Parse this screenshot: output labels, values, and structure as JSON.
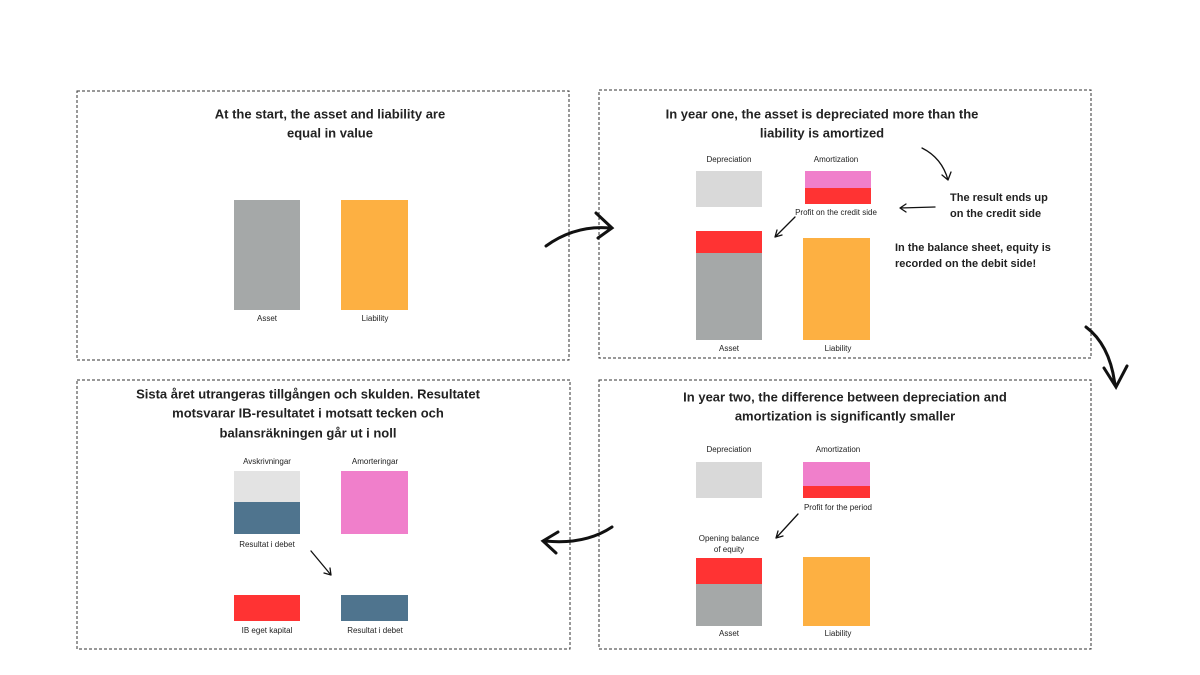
{
  "panels": [
    {
      "title": [
        "At the start, the asset and liability are",
        "equal in value"
      ],
      "labels": {
        "asset": "Asset",
        "liability": "Liability"
      }
    },
    {
      "title": [
        "In year one, the asset is depreciated more than the",
        "liability is amortized"
      ],
      "labels": {
        "depreciation": "Depreciation",
        "amortization": "Amortization",
        "profit": "Profit on the credit side",
        "asset": "Asset",
        "liability": "Liability"
      },
      "notes": [
        [
          "The result ends up",
          "on the credit side"
        ],
        [
          "In the balance sheet, equity is",
          "recorded on the debit side!"
        ]
      ]
    },
    {
      "title": [
        "In year two, the difference between depreciation and",
        "amortization is significantly smaller"
      ],
      "labels": {
        "depreciation": "Depreciation",
        "amortization": "Amortization",
        "profit": "Profit for the period",
        "opening": [
          "Opening balance",
          "of equity"
        ],
        "asset": "Asset",
        "liability": "Liability"
      }
    },
    {
      "title": [
        "Sista året utrangeras tillgången och skulden. Resultatet",
        "motsvarar IB-resultatet i motsatt tecken och",
        "balansräkningen går ut i noll"
      ],
      "labels": {
        "avskrivningar": "Avskrivningar",
        "amorteringar": "Amorteringar",
        "resultat_top": "Resultat i debet",
        "ib": "IB eget kapital",
        "resultat_bottom": "Resultat i debet"
      }
    }
  ]
}
